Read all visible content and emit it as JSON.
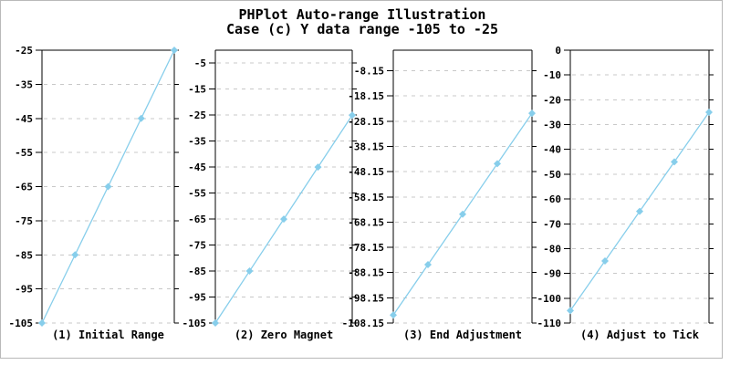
{
  "header": {
    "title": "PHPlot Auto-range Illustration",
    "subtitle": "Case (c) Y data range -105 to -25"
  },
  "style": {
    "line_color": "#87CEEB",
    "marker_shape": "diamond",
    "grid_color": "#C8C8C8",
    "axis_color": "#000000",
    "text_color": "#000000",
    "image_border_color": "#B9B9B9",
    "background": "#FFFFFF"
  },
  "chart_data": [
    {
      "type": "line",
      "title": "(1) Initial Range",
      "values": [
        -105,
        -85,
        -65,
        -45,
        -25
      ],
      "ylim": [
        -105,
        -25
      ],
      "yticks": [
        -25,
        -35,
        -45,
        -55,
        -65,
        -75,
        -85,
        -95,
        -105
      ],
      "grid": true,
      "legend": "none",
      "x_axis_labels": "none"
    },
    {
      "type": "line",
      "title": "(2) Zero Magnet",
      "values": [
        -105,
        -85,
        -65,
        -45,
        -25
      ],
      "ylim": [
        -105,
        0
      ],
      "yticks": [
        -5,
        -15,
        -25,
        -35,
        -45,
        -55,
        -65,
        -75,
        -85,
        -95,
        -105
      ],
      "grid": true,
      "legend": "none",
      "x_axis_labels": "none"
    },
    {
      "type": "line",
      "title": "(3) End Adjustment",
      "values": [
        -105,
        -85,
        -65,
        -45,
        -25
      ],
      "ylim": [
        -108.15,
        0
      ],
      "yticks": [
        -8.15,
        -18.15,
        -28.15,
        -38.15,
        -48.15,
        -58.15,
        -68.15,
        -78.15,
        -88.15,
        -98.15,
        -108.15
      ],
      "grid": true,
      "legend": "none",
      "x_axis_labels": "none"
    },
    {
      "type": "line",
      "title": "(4) Adjust to Tick",
      "values": [
        -105,
        -85,
        -65,
        -45,
        -25
      ],
      "ylim": [
        -110,
        0
      ],
      "yticks": [
        0,
        -10,
        -20,
        -30,
        -40,
        -50,
        -60,
        -70,
        -80,
        -90,
        -100,
        -110
      ],
      "grid": true,
      "legend": "none",
      "x_axis_labels": "none"
    }
  ]
}
